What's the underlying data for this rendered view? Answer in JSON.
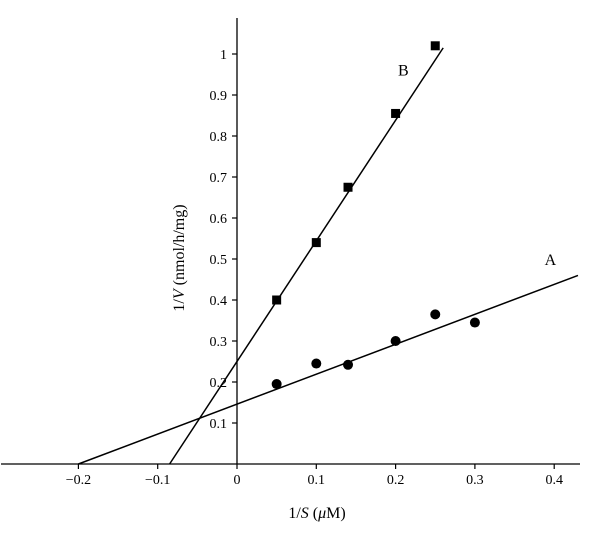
{
  "chart_data": {
    "type": "scatter",
    "xlabel_prefix": "1/",
    "xlabel_var": "S",
    "xlabel_unit_open": " (",
    "xlabel_unit_mu": "μ",
    "xlabel_unit_rest": "M)",
    "ylabel_prefix": "1/",
    "ylabel_var": "V",
    "ylabel_unit": " (nmol/h/mg)",
    "xlim": [
      -0.27,
      0.43
    ],
    "ylim": [
      0,
      1.07
    ],
    "x_ticks": [
      {
        "value": -0.2,
        "label": "−0.2"
      },
      {
        "value": -0.1,
        "label": "−0.1"
      },
      {
        "value": 0,
        "label": "0"
      },
      {
        "value": 0.1,
        "label": "0.1"
      },
      {
        "value": 0.2,
        "label": "0.2"
      },
      {
        "value": 0.3,
        "label": "0.3"
      },
      {
        "value": 0.4,
        "label": "0.4"
      }
    ],
    "y_ticks": [
      {
        "value": 0.1,
        "label": "0.1"
      },
      {
        "value": 0.2,
        "label": "0.2"
      },
      {
        "value": 0.3,
        "label": "0.3"
      },
      {
        "value": 0.4,
        "label": "0.4"
      },
      {
        "value": 0.5,
        "label": "0.5"
      },
      {
        "value": 0.6,
        "label": "0.6"
      },
      {
        "value": 0.7,
        "label": "0.7"
      },
      {
        "value": 0.8,
        "label": "0.8"
      },
      {
        "value": 0.9,
        "label": "0.9"
      },
      {
        "value": 1,
        "label": "1"
      }
    ],
    "series": [
      {
        "name": "A",
        "marker": "circle",
        "x": [
          0.05,
          0.1,
          0.14,
          0.2,
          0.25,
          0.3
        ],
        "y": [
          0.195,
          0.245,
          0.242,
          0.3,
          0.365,
          0.345
        ],
        "fit_line": {
          "x_start": -0.2,
          "x_end": 0.43,
          "y_at_start": 0.0,
          "y_at_end": 0.46
        }
      },
      {
        "name": "B",
        "marker": "square",
        "x": [
          0.05,
          0.1,
          0.14,
          0.2,
          0.25
        ],
        "y": [
          0.4,
          0.54,
          0.675,
          0.855,
          1.02
        ],
        "fit_line": {
          "x_start": -0.085,
          "x_end": 0.26,
          "y_at_start": 0.0,
          "y_at_end": 1.015
        }
      }
    ],
    "grid": false,
    "legend": "none"
  }
}
